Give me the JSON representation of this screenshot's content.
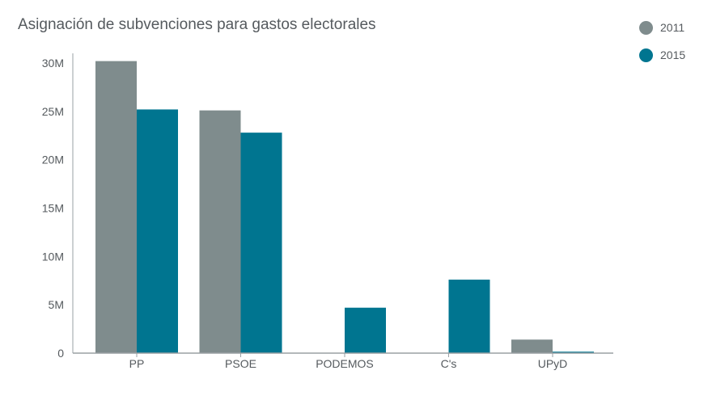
{
  "chart_data": {
    "type": "bar",
    "title": "Asignación de subvenciones para gastos electorales",
    "categories": [
      "PP",
      "PSOE",
      "PODEMOS",
      "C's",
      "UPyD"
    ],
    "series": [
      {
        "name": "2011",
        "color": "#7f8c8d",
        "values": [
          30.2,
          25.1,
          0,
          0,
          1.4
        ]
      },
      {
        "name": "2015",
        "color": "#007590",
        "values": [
          25.2,
          22.8,
          4.7,
          7.6,
          0.15
        ]
      }
    ],
    "yticks": [
      "0",
      "5M",
      "10M",
      "15M",
      "20M",
      "25M",
      "30M"
    ],
    "ylim": [
      0,
      30
    ],
    "xlabel": "",
    "ylabel": "",
    "legend_position": "top-right",
    "grid": false
  }
}
